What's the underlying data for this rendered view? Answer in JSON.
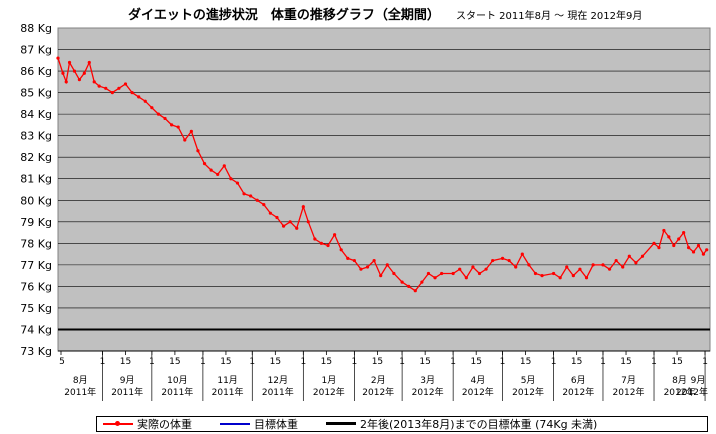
{
  "chart_data": {
    "type": "line",
    "title": "ダイエットの進捗状況　体重の推移グラフ（全期間）",
    "subtitle": "スタート 2011年8月 〜 現在 2012年9月",
    "ylim": [
      73,
      88
    ],
    "y_ticks": [
      "73 Kg",
      "74 Kg",
      "75 Kg",
      "76 Kg",
      "77 Kg",
      "78 Kg",
      "79 Kg",
      "80 Kg",
      "81 Kg",
      "82 Kg",
      "83 Kg",
      "84 Kg",
      "85 Kg",
      "86 Kg",
      "87 Kg",
      "88 Kg"
    ],
    "grid": true,
    "legend_position": "bottom",
    "x_day_ticks": [
      "5",
      "1",
      "15",
      "1",
      "15",
      "1",
      "15",
      "1",
      "15",
      "1",
      "15",
      "1",
      "15",
      "1",
      "15",
      "1",
      "15",
      "1",
      "15",
      "1",
      "15",
      "1",
      "15",
      "1",
      "15",
      "1",
      "15",
      "1"
    ],
    "x_month_labels": [
      {
        "month": "8月",
        "year": "2011年"
      },
      {
        "month": "9月",
        "year": "2011年"
      },
      {
        "month": "10月",
        "year": "2011年"
      },
      {
        "month": "11月",
        "year": "2011年"
      },
      {
        "month": "12月",
        "year": "2011年"
      },
      {
        "month": "1月",
        "year": "2012年"
      },
      {
        "month": "2月",
        "year": "2012年"
      },
      {
        "month": "3月",
        "year": "2012年"
      },
      {
        "month": "4月",
        "year": "2012年"
      },
      {
        "month": "5月",
        "year": "2012年"
      },
      {
        "month": "6月",
        "year": "2012年"
      },
      {
        "month": "7月",
        "year": "2012年"
      },
      {
        "month": "8月",
        "year": "2012年"
      },
      {
        "month": "9月",
        "year": "2012年"
      }
    ],
    "series": [
      {
        "name": "実際の体重",
        "color": "#ff0000",
        "points": [
          [
            "2011-08-05",
            86.6
          ],
          [
            "2011-08-08",
            85.9
          ],
          [
            "2011-08-10",
            85.5
          ],
          [
            "2011-08-12",
            86.4
          ],
          [
            "2011-08-15",
            86.0
          ],
          [
            "2011-08-18",
            85.6
          ],
          [
            "2011-08-21",
            85.9
          ],
          [
            "2011-08-24",
            86.4
          ],
          [
            "2011-08-27",
            85.5
          ],
          [
            "2011-08-30",
            85.3
          ],
          [
            "2011-09-03",
            85.2
          ],
          [
            "2011-09-07",
            85.0
          ],
          [
            "2011-09-11",
            85.2
          ],
          [
            "2011-09-15",
            85.4
          ],
          [
            "2011-09-19",
            85.0
          ],
          [
            "2011-09-23",
            84.8
          ],
          [
            "2011-09-27",
            84.6
          ],
          [
            "2011-10-01",
            84.3
          ],
          [
            "2011-10-05",
            84.0
          ],
          [
            "2011-10-09",
            83.8
          ],
          [
            "2011-10-13",
            83.5
          ],
          [
            "2011-10-17",
            83.4
          ],
          [
            "2011-10-21",
            82.8
          ],
          [
            "2011-10-25",
            83.2
          ],
          [
            "2011-10-29",
            82.3
          ],
          [
            "2011-11-02",
            81.7
          ],
          [
            "2011-11-06",
            81.4
          ],
          [
            "2011-11-10",
            81.2
          ],
          [
            "2011-11-14",
            81.6
          ],
          [
            "2011-11-18",
            81.0
          ],
          [
            "2011-11-22",
            80.8
          ],
          [
            "2011-11-26",
            80.3
          ],
          [
            "2011-11-30",
            80.2
          ],
          [
            "2011-12-04",
            80.0
          ],
          [
            "2011-12-08",
            79.8
          ],
          [
            "2011-12-12",
            79.4
          ],
          [
            "2011-12-16",
            79.2
          ],
          [
            "2011-12-20",
            78.8
          ],
          [
            "2011-12-24",
            79.0
          ],
          [
            "2011-12-28",
            78.7
          ],
          [
            "2012-01-01",
            79.7
          ],
          [
            "2012-01-04",
            79.0
          ],
          [
            "2012-01-08",
            78.2
          ],
          [
            "2012-01-12",
            78.0
          ],
          [
            "2012-01-16",
            77.9
          ],
          [
            "2012-01-20",
            78.4
          ],
          [
            "2012-01-24",
            77.7
          ],
          [
            "2012-01-28",
            77.3
          ],
          [
            "2012-02-01",
            77.2
          ],
          [
            "2012-02-05",
            76.8
          ],
          [
            "2012-02-09",
            76.9
          ],
          [
            "2012-02-13",
            77.2
          ],
          [
            "2012-02-17",
            76.5
          ],
          [
            "2012-02-21",
            77.0
          ],
          [
            "2012-02-25",
            76.6
          ],
          [
            "2012-03-01",
            76.2
          ],
          [
            "2012-03-05",
            76.0
          ],
          [
            "2012-03-09",
            75.8
          ],
          [
            "2012-03-13",
            76.2
          ],
          [
            "2012-03-17",
            76.6
          ],
          [
            "2012-03-21",
            76.4
          ],
          [
            "2012-03-25",
            76.6
          ],
          [
            "2012-04-01",
            76.6
          ],
          [
            "2012-04-05",
            76.8
          ],
          [
            "2012-04-09",
            76.4
          ],
          [
            "2012-04-13",
            76.9
          ],
          [
            "2012-04-17",
            76.6
          ],
          [
            "2012-04-21",
            76.8
          ],
          [
            "2012-04-25",
            77.2
          ],
          [
            "2012-05-01",
            77.3
          ],
          [
            "2012-05-05",
            77.2
          ],
          [
            "2012-05-09",
            76.9
          ],
          [
            "2012-05-13",
            77.5
          ],
          [
            "2012-05-17",
            77.0
          ],
          [
            "2012-05-21",
            76.6
          ],
          [
            "2012-05-25",
            76.5
          ],
          [
            "2012-06-01",
            76.6
          ],
          [
            "2012-06-05",
            76.4
          ],
          [
            "2012-06-09",
            76.9
          ],
          [
            "2012-06-13",
            76.5
          ],
          [
            "2012-06-17",
            76.8
          ],
          [
            "2012-06-21",
            76.4
          ],
          [
            "2012-06-25",
            77.0
          ],
          [
            "2012-07-01",
            77.0
          ],
          [
            "2012-07-05",
            76.8
          ],
          [
            "2012-07-09",
            77.2
          ],
          [
            "2012-07-13",
            76.9
          ],
          [
            "2012-07-17",
            77.4
          ],
          [
            "2012-07-21",
            77.1
          ],
          [
            "2012-07-25",
            77.4
          ],
          [
            "2012-08-01",
            78.0
          ],
          [
            "2012-08-04",
            77.8
          ],
          [
            "2012-08-07",
            78.6
          ],
          [
            "2012-08-10",
            78.3
          ],
          [
            "2012-08-13",
            77.9
          ],
          [
            "2012-08-16",
            78.2
          ],
          [
            "2012-08-19",
            78.5
          ],
          [
            "2012-08-22",
            77.8
          ],
          [
            "2012-08-25",
            77.6
          ],
          [
            "2012-08-28",
            77.9
          ],
          [
            "2012-08-31",
            77.5
          ],
          [
            "2012-09-02",
            77.7
          ]
        ]
      },
      {
        "name": "目標体重",
        "color": "#0000cc"
      },
      {
        "name": "2年後(2013年8月)までの目標体重 (74Kg 未満)",
        "color": "#000000",
        "value": 74
      }
    ]
  }
}
